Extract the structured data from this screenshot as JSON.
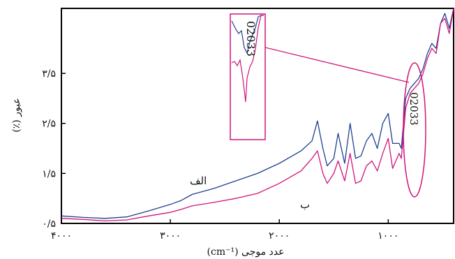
{
  "chart_data": {
    "type": "line",
    "xlabel": "عدد موجی (cm⁻¹)",
    "ylabel": "عبور (٪)",
    "xlim": [
      4000,
      400
    ],
    "ylim": [
      0.5,
      4.8
    ],
    "x_ticks": [
      {
        "value": 4000,
        "label": "۴۰۰۰"
      },
      {
        "value": 3000,
        "label": "۳۰۰۰"
      },
      {
        "value": 2000,
        "label": "۲۰۰۰"
      },
      {
        "value": 1000,
        "label": "۱۰۰۰"
      }
    ],
    "y_ticks": [
      {
        "value": 0.5,
        "label": "۰/۵"
      },
      {
        "value": 1.5,
        "label": "۱/۵"
      },
      {
        "value": 2.5,
        "label": "۲/۵"
      },
      {
        "value": 3.5,
        "label": "۳/۵"
      }
    ],
    "series": [
      {
        "name": "الف",
        "color": "#1f3f8f",
        "x": [
          4000,
          3800,
          3600,
          3400,
          3200,
          3000,
          2900,
          2800,
          2600,
          2400,
          2200,
          2000,
          1800,
          1700,
          1650,
          1600,
          1560,
          1500,
          1460,
          1400,
          1350,
          1300,
          1250,
          1200,
          1150,
          1100,
          1050,
          1000,
          960,
          900,
          880,
          840,
          800,
          760,
          720,
          680,
          640,
          600,
          560,
          520,
          480,
          440,
          400
        ],
        "y": [
          0.65,
          0.62,
          0.6,
          0.63,
          0.75,
          0.88,
          0.96,
          1.08,
          1.2,
          1.35,
          1.5,
          1.7,
          1.95,
          2.15,
          2.55,
          2.0,
          1.65,
          1.8,
          2.3,
          1.7,
          2.5,
          1.8,
          1.85,
          2.15,
          2.3,
          2.0,
          2.5,
          2.7,
          2.1,
          2.1,
          2.0,
          3.0,
          3.2,
          3.3,
          3.4,
          3.6,
          3.9,
          4.1,
          4.0,
          4.5,
          4.7,
          4.4,
          4.8
        ]
      },
      {
        "name": "ب",
        "color": "#d0137a",
        "x": [
          4000,
          3800,
          3600,
          3400,
          3200,
          3000,
          2900,
          2800,
          2600,
          2400,
          2200,
          2000,
          1800,
          1700,
          1650,
          1600,
          1560,
          1500,
          1460,
          1400,
          1350,
          1300,
          1250,
          1200,
          1150,
          1100,
          1050,
          1000,
          960,
          900,
          880,
          840,
          800,
          760,
          720,
          680,
          640,
          600,
          560,
          520,
          480,
          440,
          400
        ],
        "y": [
          0.6,
          0.58,
          0.55,
          0.57,
          0.65,
          0.72,
          0.78,
          0.85,
          0.92,
          1.0,
          1.1,
          1.3,
          1.55,
          1.8,
          1.95,
          1.5,
          1.3,
          1.5,
          1.75,
          1.35,
          1.9,
          1.3,
          1.35,
          1.65,
          1.75,
          1.55,
          1.9,
          2.2,
          1.6,
          1.9,
          1.8,
          2.8,
          3.1,
          3.2,
          3.3,
          3.5,
          3.8,
          4.0,
          3.9,
          4.5,
          4.6,
          4.3,
          4.8
        ]
      }
    ],
    "annotations": {
      "peak_label": "02033",
      "inset_label": "02033"
    }
  }
}
